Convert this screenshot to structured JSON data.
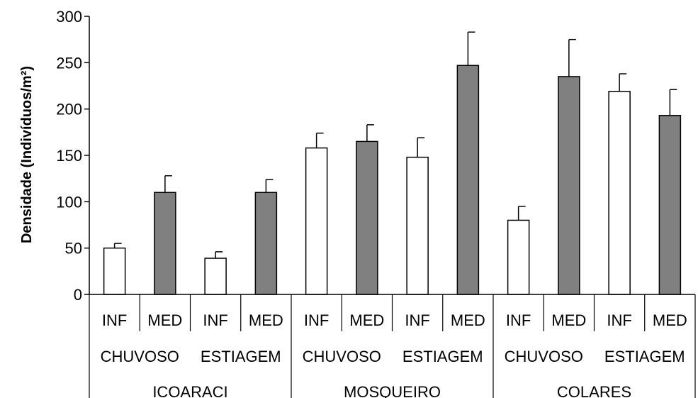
{
  "chart_data": {
    "type": "bar",
    "title": "",
    "xlabel": "",
    "ylabel": "Densidade (Indivíduos/m²)",
    "ylim": [
      0,
      300
    ],
    "yticks": [
      0,
      50,
      100,
      150,
      200,
      250,
      300
    ],
    "grid": false,
    "legend": "none",
    "categories": [
      {
        "site": "ICOARACI",
        "season": "CHUVOSO",
        "zone": "INF"
      },
      {
        "site": "ICOARACI",
        "season": "CHUVOSO",
        "zone": "MED"
      },
      {
        "site": "ICOARACI",
        "season": "ESTIAGEM",
        "zone": "INF"
      },
      {
        "site": "ICOARACI",
        "season": "ESTIAGEM",
        "zone": "MED"
      },
      {
        "site": "MOSQUEIRO",
        "season": "CHUVOSO",
        "zone": "INF"
      },
      {
        "site": "MOSQUEIRO",
        "season": "CHUVOSO",
        "zone": "MED"
      },
      {
        "site": "MOSQUEIRO",
        "season": "ESTIAGEM",
        "zone": "INF"
      },
      {
        "site": "MOSQUEIRO",
        "season": "ESTIAGEM",
        "zone": "MED"
      },
      {
        "site": "COLARES",
        "season": "CHUVOSO",
        "zone": "INF"
      },
      {
        "site": "COLARES",
        "season": "CHUVOSO",
        "zone": "MED"
      },
      {
        "site": "COLARES",
        "season": "ESTIAGEM",
        "zone": "INF"
      },
      {
        "site": "COLARES",
        "season": "ESTIAGEM",
        "zone": "MED"
      }
    ],
    "values": [
      50,
      110,
      39,
      110,
      158,
      165,
      148,
      247,
      80,
      235,
      219,
      193
    ],
    "errors": [
      5,
      18,
      7,
      14,
      16,
      18,
      21,
      36,
      15,
      40,
      19,
      28
    ],
    "colors": {
      "INF": "#ffffff",
      "MED": "#808080",
      "edge": "#000000"
    }
  }
}
